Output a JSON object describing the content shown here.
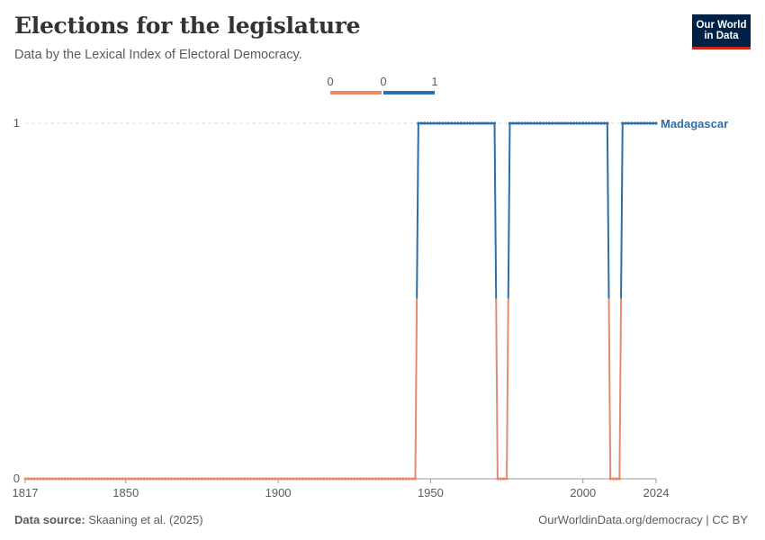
{
  "header": {
    "title": "Elections for the legislature",
    "subtitle": "Data by the Lexical Index of Electoral Democracy."
  },
  "logo": {
    "line1": "Our World",
    "line2": "in Data"
  },
  "footer": {
    "source_label": "Data source:",
    "source_text": "Skaaning et al. (2025)",
    "url": "OurWorldinData.org/democracy | CC BY"
  },
  "colors": {
    "low": "#e8896b",
    "high": "#2c6fa8",
    "grid": "#dddddd",
    "axis": "#999999"
  },
  "legend": {
    "labels": [
      "0",
      "0",
      "1"
    ]
  },
  "chart_data": {
    "type": "line",
    "title": "Elections for the legislature",
    "series": [
      {
        "name": "Madagascar",
        "segments": [
          {
            "x_start": 1817,
            "x_end": 1945,
            "value": 0
          },
          {
            "x_start": 1946,
            "x_end": 1971,
            "value": 1
          },
          {
            "x_start": 1972,
            "x_end": 1975,
            "value": 0
          },
          {
            "x_start": 1976,
            "x_end": 2008,
            "value": 1
          },
          {
            "x_start": 2009,
            "x_end": 2012,
            "value": 0
          },
          {
            "x_start": 2013,
            "x_end": 2024,
            "value": 1
          }
        ]
      }
    ],
    "xlim": [
      1817,
      2024
    ],
    "ylim": [
      0,
      1
    ],
    "x_ticks": [
      1817,
      1850,
      1900,
      1950,
      2000,
      2024
    ],
    "y_ticks": [
      0,
      1
    ],
    "grid": true,
    "legend_position": "top"
  }
}
